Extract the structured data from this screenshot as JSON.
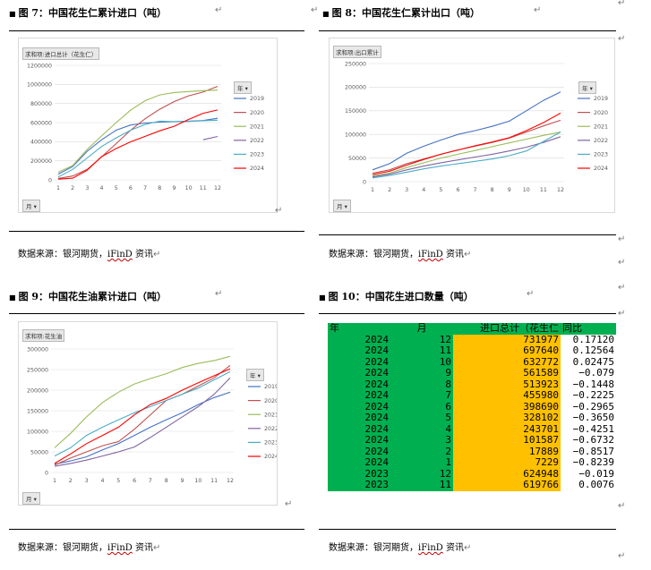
{
  "fig7": {
    "title": "图 7：中国花生仁累计进口（吨）",
    "pivot_field": "求和项:进口总计（花生仁）",
    "legend_title": "年",
    "row_button": "月",
    "source": "数据来源：银河期货，",
    "source_brand": "iFinD",
    "source_tail": " 资讯"
  },
  "fig8": {
    "title": "图 8：中国花生仁累计出口（吨）",
    "pivot_field": "求和项:出口累计",
    "legend_title": "年",
    "row_button": "月",
    "source": "数据来源：银河期货，",
    "source_brand": "iFinD",
    "source_tail": " 资讯"
  },
  "fig9": {
    "title": "图 9：中国花生油累计进口（吨）",
    "pivot_field": "求和项:花生油",
    "legend_title": "年",
    "row_button": "月",
    "source": "数据来源：银河期货，",
    "source_brand": "iFinD",
    "source_tail": " 资讯"
  },
  "fig10": {
    "title": "图 10：中国花生进口数量（吨）",
    "headers": [
      "年",
      "月",
      "进口总计（花生仁",
      "同比"
    ],
    "rows": [
      [
        "2024",
        "12",
        "731977",
        "0.17120"
      ],
      [
        "2024",
        "11",
        "697640",
        "0.12564"
      ],
      [
        "2024",
        "10",
        "632772",
        "0.02475"
      ],
      [
        "2024",
        "9",
        "561589",
        "−0.079"
      ],
      [
        "2024",
        "8",
        "513923",
        "−0.1448"
      ],
      [
        "2024",
        "7",
        "455980",
        "−0.2225"
      ],
      [
        "2024",
        "6",
        "398690",
        "−0.2965"
      ],
      [
        "2024",
        "5",
        "328102",
        "−0.3650"
      ],
      [
        "2024",
        "4",
        "243701",
        "−0.4251"
      ],
      [
        "2024",
        "3",
        "101587",
        "−0.6732"
      ],
      [
        "2024",
        "2",
        "17889",
        "−0.8517"
      ],
      [
        "2024",
        "1",
        "7229",
        "−0.8239"
      ],
      [
        "2023",
        "12",
        "624948",
        "−0.019"
      ],
      [
        "2023",
        "11",
        "619766",
        "0.0076"
      ]
    ]
  },
  "colors": {
    "2019": "#4472c4",
    "2020": "#c0504d",
    "2021": "#9bbb59",
    "2022": "#8064a2",
    "2023": "#4bacc6",
    "2024": "#ff0000",
    "table_green": "#00b050",
    "table_yellow": "#ffc000"
  },
  "chart_data": [
    {
      "type": "line",
      "title": "",
      "xlabel": "",
      "ylabel": "",
      "categories": [
        "1",
        "2",
        "3",
        "4",
        "5",
        "6",
        "7",
        "8",
        "9",
        "10",
        "11",
        "12"
      ],
      "ylim": [
        0,
        1200000
      ],
      "yticks": [
        "0",
        "200000",
        "400000",
        "600000",
        "800000",
        "1000000",
        "1200000"
      ],
      "grid": true,
      "legend_placement": "right",
      "series": [
        {
          "name": "2019",
          "values": [
            60000,
            140000,
            300000,
            420000,
            520000,
            575000,
            595000,
            605000,
            610000,
            615000,
            622000,
            645000
          ]
        },
        {
          "name": "2020",
          "values": [
            15000,
            40000,
            110000,
            240000,
            380000,
            520000,
            640000,
            740000,
            820000,
            880000,
            920000,
            980000
          ]
        },
        {
          "name": "2021",
          "values": [
            80000,
            150000,
            320000,
            460000,
            600000,
            730000,
            830000,
            890000,
            915000,
            925000,
            935000,
            940000
          ]
        },
        {
          "name": "2022",
          "values": [
            null,
            null,
            null,
            null,
            null,
            null,
            null,
            null,
            null,
            null,
            420000,
            455000
          ]
        },
        {
          "name": "2023",
          "values": [
            30000,
            110000,
            230000,
            350000,
            440000,
            520000,
            580000,
            615000,
            610000,
            612000,
            619766,
            624948
          ]
        },
        {
          "name": "2024",
          "values": [
            7229,
            17889,
            101587,
            243701,
            328102,
            398690,
            455980,
            513923,
            561589,
            632772,
            697640,
            731977
          ]
        }
      ]
    },
    {
      "type": "line",
      "title": "",
      "xlabel": "",
      "ylabel": "",
      "categories": [
        "1",
        "2",
        "3",
        "4",
        "5",
        "6",
        "7",
        "8",
        "9",
        "10",
        "11",
        "12"
      ],
      "ylim": [
        0,
        250000
      ],
      "yticks": [
        "0",
        "50000",
        "100000",
        "150000",
        "200000",
        "250000"
      ],
      "grid": true,
      "legend_placement": "right",
      "series": [
        {
          "name": "2019",
          "values": [
            25000,
            38000,
            60000,
            75000,
            88000,
            100000,
            108000,
            117000,
            128000,
            150000,
            172000,
            190000
          ]
        },
        {
          "name": "2020",
          "values": [
            18000,
            25000,
            38000,
            48000,
            58000,
            67000,
            75000,
            83000,
            92000,
            105000,
            118000,
            130000
          ]
        },
        {
          "name": "2021",
          "values": [
            12000,
            18000,
            30000,
            40000,
            50000,
            58000,
            66000,
            74000,
            82000,
            90000,
            98000,
            105000
          ]
        },
        {
          "name": "2022",
          "values": [
            10000,
            16000,
            25000,
            33000,
            40000,
            46000,
            52000,
            58000,
            65000,
            73000,
            83000,
            95000
          ]
        },
        {
          "name": "2023",
          "values": [
            8000,
            13000,
            20000,
            27000,
            33000,
            38000,
            43000,
            48000,
            55000,
            65000,
            85000,
            105000
          ]
        },
        {
          "name": "2024",
          "values": [
            15000,
            22000,
            35000,
            47000,
            58000,
            67000,
            76000,
            84000,
            93000,
            108000,
            125000,
            145000
          ]
        }
      ]
    },
    {
      "type": "line",
      "title": "",
      "xlabel": "",
      "ylabel": "",
      "categories": [
        "1",
        "2",
        "3",
        "4",
        "5",
        "6",
        "7",
        "8",
        "9",
        "10",
        "11",
        "12"
      ],
      "ylim": [
        0,
        300000
      ],
      "yticks": [
        "0",
        "50000",
        "100000",
        "150000",
        "200000",
        "250000",
        "300000"
      ],
      "grid": true,
      "legend_placement": "right",
      "series": [
        {
          "name": "2019",
          "values": [
            20000,
            28000,
            38000,
            55000,
            70000,
            90000,
            110000,
            128000,
            145000,
            165000,
            182000,
            195000
          ]
        },
        {
          "name": "2020",
          "values": [
            18000,
            35000,
            50000,
            65000,
            75000,
            105000,
            140000,
            175000,
            190000,
            210000,
            230000,
            260000
          ]
        },
        {
          "name": "2021",
          "values": [
            60000,
            95000,
            135000,
            170000,
            195000,
            215000,
            228000,
            240000,
            255000,
            265000,
            272000,
            282000
          ]
        },
        {
          "name": "2022",
          "values": [
            15000,
            22000,
            30000,
            40000,
            50000,
            62000,
            85000,
            110000,
            135000,
            160000,
            190000,
            230000
          ]
        },
        {
          "name": "2023",
          "values": [
            40000,
            60000,
            90000,
            110000,
            128000,
            145000,
            160000,
            175000,
            190000,
            205000,
            225000,
            245000
          ]
        },
        {
          "name": "2024",
          "values": [
            22000,
            45000,
            70000,
            90000,
            110000,
            140000,
            165000,
            180000,
            200000,
            218000,
            235000,
            252000
          ]
        }
      ]
    }
  ]
}
